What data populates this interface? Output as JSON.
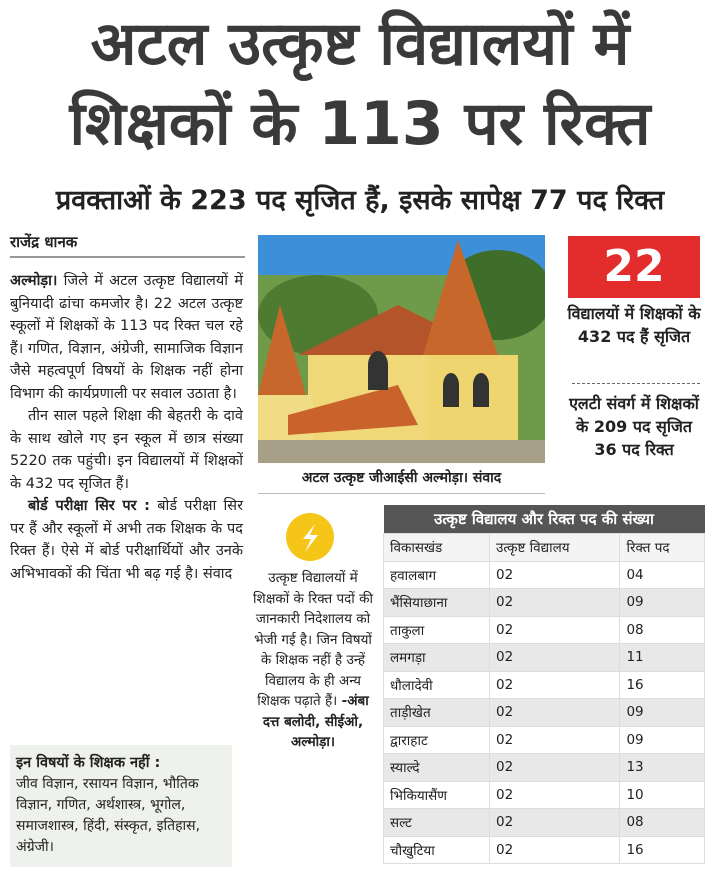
{
  "header": {
    "title_line1": "अटल उत्कृष्ट विद्यालयों में",
    "title_line2": "शिक्षकों के 113 पर रिक्त",
    "subtitle": "प्रवक्ताओं के 223 पद सृजित हैं, इसके सापेक्ष 77 पद रिक्त",
    "byline": "राजेंद्र धानक"
  },
  "body": {
    "dateline": "अल्मोड़ा।",
    "p1": "जिले में अटल उत्कृष्ट विद्यालयों में बुनियादी ढांचा कमजोर है। 22 अटल उत्कृष्ट स्कूलों में शिक्षकों के 113 पद रिक्त चल रहे हैं। गणित, विज्ञान, अंग्रेजी, सामाजिक विज्ञान जैसे महत्वपूर्ण विषयों के शिक्षक नहीं होना विभाग की कार्यप्रणाली पर सवाल उठाता है।",
    "p2": "तीन साल पहले शिक्षा की बेहतरी के दावे के साथ खोले गए इन स्कूल में छात्र संख्या 5220 तक पहुंची। इन विद्यालयों में शिक्षकों के 432 पद सृजित हैं।",
    "p3_heading": "बोर्ड परीक्षा सिर पर :",
    "p3": "बोर्ड परीक्षा सिर पर हैं और स्कूलों में अभी तक शिक्षक के पद रिक्त हैं। ऐसे में बोर्ड परीक्षार्थियों और उनके अभिभावकों की चिंता भी बढ़ गई है। संवाद"
  },
  "subjects_box": {
    "title": "इन विषयों के शिक्षक नहीं :",
    "text": "जीव विज्ञान, रसायन विज्ञान, भौतिक विज्ञान, गणित, अर्थशास्त्र, भूगोल, समाजशास्त्र, हिंदी, संस्कृत, इतिहास, अंग्रेजी।"
  },
  "photo": {
    "caption": "अटल उत्कृष्ट जीआईसी अल्मोड़ा। संवाद"
  },
  "sidebar": {
    "big_number": "22",
    "text1": "विद्यालयों में शिक्षकों के 432 पद हैं सृजित",
    "text2": "एलटी संवर्ग में शिक्षकों के 209 पद सृजित 36 पद रिक्त"
  },
  "quote": {
    "text": "उत्कृष्ट विद्यालयों में शिक्षकों के रिक्त पदों की जानकारी निदेशालय को भेजी गई है। जिन विषयों के शिक्षक नहीं है उन्हें विद्यालय के ही अन्य शिक्षक पढ़ाते हैं।",
    "attribution": "-अंबा दत्त बलोदी, सीईओ, अल्मोड़ा।"
  },
  "table": {
    "title": "उत्कृष्ट विद्यालय और रिक्त पद की संख्या",
    "columns": [
      "विकासखंड",
      "उत्कृष्ट विद्यालय",
      "रिक्त पद"
    ],
    "rows": [
      [
        "हवालबाग",
        "02",
        "04"
      ],
      [
        "भैंसियाछाना",
        "02",
        "09"
      ],
      [
        "ताकुला",
        "02",
        "08"
      ],
      [
        "लमगड़ा",
        "02",
        "11"
      ],
      [
        "धौलादेवी",
        "02",
        "16"
      ],
      [
        "ताड़ीखेत",
        "02",
        "09"
      ],
      [
        "द्वाराहाट",
        "02",
        "09"
      ],
      [
        "स्याल्दे",
        "02",
        "13"
      ],
      [
        "भिकियासैंण",
        "02",
        "10"
      ],
      [
        "सल्ट",
        "02",
        "08"
      ],
      [
        "चौखुटिया",
        "02",
        "16"
      ]
    ]
  }
}
